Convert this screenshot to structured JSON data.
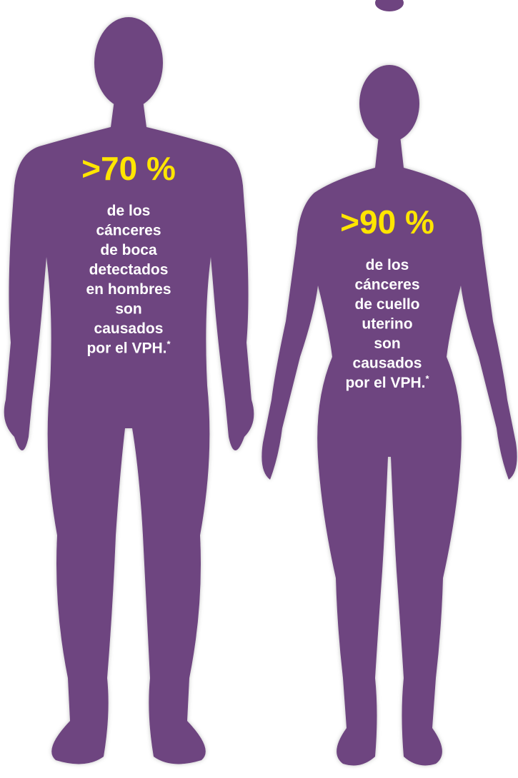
{
  "figures": [
    {
      "stat": ">70 %",
      "lines": [
        "de los",
        "cánceres",
        "de boca",
        "detectados",
        "en hombres",
        "son",
        "causados",
        "por el VPH."
      ],
      "footnote_mark": "*"
    },
    {
      "stat": ">90 %",
      "lines": [
        "de los",
        "cánceres",
        "de cuello",
        "uterino",
        "son",
        "causados",
        "por el VPH."
      ],
      "footnote_mark": "*"
    }
  ]
}
